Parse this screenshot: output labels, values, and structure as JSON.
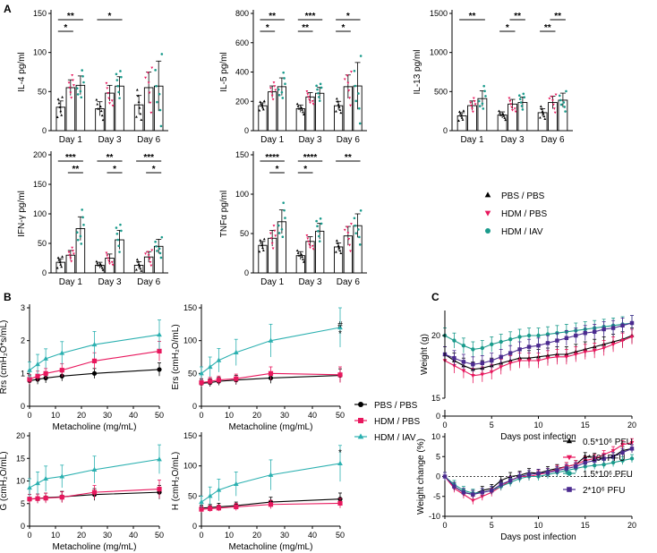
{
  "panel_labels": [
    "A",
    "B",
    "C"
  ],
  "legends": {
    "A": [
      {
        "label": "PBS / PBS",
        "color": "#000000",
        "marker": "triangle"
      },
      {
        "label": "HDM / PBS",
        "color": "#e8175d",
        "marker": "triangle-down"
      },
      {
        "label": "HDM / IAV",
        "color": "#1a9b8c",
        "marker": "circle"
      }
    ],
    "B": [
      {
        "label": "PBS / PBS",
        "color": "#000000",
        "marker": "circle"
      },
      {
        "label": "HDM / PBS",
        "color": "#e8175d",
        "marker": "square"
      },
      {
        "label": "HDM / IAV",
        "color": "#2bb0b0",
        "marker": "triangle"
      }
    ],
    "C": [
      {
        "label": "0.5*10⁶ PFU",
        "color": "#000000",
        "marker": "triangle"
      },
      {
        "label": "1*10⁶ PFU",
        "color": "#e8175d",
        "marker": "triangle-down"
      },
      {
        "label": "1.5*10⁶ PFU",
        "color": "#1a9b8c",
        "marker": "circle"
      },
      {
        "label": "2*10⁶ PFU",
        "color": "#4b2a8f",
        "marker": "square"
      }
    ]
  },
  "chart_data": [
    {
      "id": "A1",
      "type": "bar",
      "ylabel": "IL-4 pg/ml",
      "ylim": [
        0,
        150
      ],
      "yticks": [
        0,
        50,
        100,
        150
      ],
      "categories": [
        "Day 1",
        "Day 3",
        "Day 6"
      ],
      "series": [
        {
          "name": "PBS / PBS",
          "values": [
            30,
            28,
            33
          ]
        },
        {
          "name": "HDM / PBS",
          "values": [
            55,
            48,
            55
          ]
        },
        {
          "name": "HDM / IAV",
          "values": [
            58,
            57,
            57
          ]
        }
      ],
      "errors": [
        [
          8,
          9,
          12
        ],
        [
          10,
          10,
          20
        ],
        [
          12,
          12,
          32
        ]
      ],
      "sig": [
        {
          "g": 0,
          "a": 0,
          "b": 2,
          "t": "**"
        },
        {
          "g": 0,
          "a": 0,
          "b": 1,
          "t": "*"
        },
        {
          "g": 1,
          "a": 0,
          "b": 2,
          "t": "*"
        }
      ]
    },
    {
      "id": "A2",
      "type": "bar",
      "ylabel": "IL-5 pg/ml",
      "ylim": [
        0,
        800
      ],
      "yticks": [
        0,
        200,
        400,
        600,
        800
      ],
      "categories": [
        "Day 1",
        "Day 3",
        "Day 6"
      ],
      "series": [
        {
          "name": "PBS / PBS",
          "values": [
            170,
            150,
            170
          ]
        },
        {
          "name": "HDM / PBS",
          "values": [
            265,
            230,
            300
          ]
        },
        {
          "name": "HDM / IAV",
          "values": [
            300,
            255,
            305
          ]
        }
      ],
      "errors": [
        [
          20,
          25,
          30
        ],
        [
          40,
          30,
          80
        ],
        [
          60,
          40,
          160
        ]
      ],
      "sig": [
        {
          "g": 0,
          "a": 0,
          "b": 2,
          "t": "**"
        },
        {
          "g": 0,
          "a": 0,
          "b": 1,
          "t": "*"
        },
        {
          "g": 1,
          "a": 0,
          "b": 2,
          "t": "***"
        },
        {
          "g": 1,
          "a": 0,
          "b": 1,
          "t": "**"
        },
        {
          "g": 2,
          "a": 0,
          "b": 2,
          "t": "*"
        },
        {
          "g": 2,
          "a": 0,
          "b": 1,
          "t": "*"
        }
      ]
    },
    {
      "id": "A3",
      "type": "bar",
      "ylabel": "IL-13 pg/ml",
      "ylim": [
        0,
        1500
      ],
      "yticks": [
        0,
        500,
        1000,
        1500
      ],
      "categories": [
        "Day 1",
        "Day 3",
        "Day 6"
      ],
      "series": [
        {
          "name": "PBS / PBS",
          "values": [
            190,
            200,
            230
          ]
        },
        {
          "name": "HDM / PBS",
          "values": [
            320,
            340,
            360
          ]
        },
        {
          "name": "HDM / IAV",
          "values": [
            410,
            360,
            390
          ]
        }
      ],
      "errors": [
        [
          40,
          40,
          50
        ],
        [
          60,
          60,
          80
        ],
        [
          100,
          70,
          90
        ]
      ],
      "sig": [
        {
          "g": 0,
          "a": 0,
          "b": 2,
          "t": "**"
        },
        {
          "g": 1,
          "a": 1,
          "b": 2,
          "t": "**"
        },
        {
          "g": 1,
          "a": 0,
          "b": 1,
          "t": "*"
        },
        {
          "g": 2,
          "a": 1,
          "b": 2,
          "t": "**"
        },
        {
          "g": 2,
          "a": 0,
          "b": 1,
          "t": "**"
        }
      ]
    },
    {
      "id": "A4",
      "type": "bar",
      "ylabel": "IFN-γ pg/ml",
      "ylim": [
        0,
        200
      ],
      "yticks": [
        0,
        50,
        100,
        150,
        200
      ],
      "categories": [
        "Day 1",
        "Day 3",
        "Day 6"
      ],
      "series": [
        {
          "name": "PBS / PBS",
          "values": [
            18,
            13,
            13
          ]
        },
        {
          "name": "HDM / PBS",
          "values": [
            30,
            25,
            27
          ]
        },
        {
          "name": "HDM / IAV",
          "values": [
            75,
            56,
            45
          ]
        }
      ],
      "errors": [
        [
          6,
          5,
          6
        ],
        [
          8,
          7,
          9
        ],
        [
          20,
          16,
          12
        ]
      ],
      "sig": [
        {
          "g": 0,
          "a": 0,
          "b": 2,
          "t": "***"
        },
        {
          "g": 0,
          "a": 1,
          "b": 2,
          "t": "**"
        },
        {
          "g": 1,
          "a": 0,
          "b": 2,
          "t": "**"
        },
        {
          "g": 1,
          "a": 1,
          "b": 2,
          "t": "*"
        },
        {
          "g": 2,
          "a": 0,
          "b": 2,
          "t": "***"
        },
        {
          "g": 2,
          "a": 1,
          "b": 2,
          "t": "*"
        }
      ]
    },
    {
      "id": "A5",
      "type": "bar",
      "ylabel": "TNFα pg/ml",
      "ylim": [
        0,
        150
      ],
      "yticks": [
        0,
        50,
        100,
        150
      ],
      "categories": [
        "Day 1",
        "Day 3",
        "Day 6"
      ],
      "series": [
        {
          "name": "PBS / PBS",
          "values": [
            35,
            22,
            33
          ]
        },
        {
          "name": "HDM / PBS",
          "values": [
            44,
            40,
            47
          ]
        },
        {
          "name": "HDM / IAV",
          "values": [
            65,
            53,
            60
          ]
        }
      ],
      "errors": [
        [
          5,
          5,
          5
        ],
        [
          10,
          6,
          12
        ],
        [
          15,
          10,
          15
        ]
      ],
      "sig": [
        {
          "g": 0,
          "a": 0,
          "b": 2,
          "t": "****"
        },
        {
          "g": 0,
          "a": 1,
          "b": 2,
          "t": "*"
        },
        {
          "g": 1,
          "a": 0,
          "b": 2,
          "t": "****"
        },
        {
          "g": 1,
          "a": 0,
          "b": 1,
          "t": "*"
        },
        {
          "g": 2,
          "a": 0,
          "b": 2,
          "t": "**"
        }
      ]
    },
    {
      "id": "B1",
      "type": "line",
      "ylabel": "Rrs (cmH₂O*s/mL)",
      "xlabel": "Metacholine (mg/mL)",
      "xlim": [
        0,
        50
      ],
      "ylim": [
        0,
        3
      ],
      "yticks": [
        0,
        1,
        2,
        3
      ],
      "xticks": [
        0,
        10,
        20,
        30,
        40,
        50
      ],
      "x": [
        0,
        3.125,
        6.25,
        12.5,
        25,
        50
      ],
      "series": [
        {
          "name": "PBS / PBS",
          "values": [
            0.78,
            0.82,
            0.86,
            0.92,
            1.0,
            1.12
          ],
          "err": [
            0.15,
            0.15,
            0.15,
            0.15,
            0.15,
            0.2
          ]
        },
        {
          "name": "HDM / PBS",
          "values": [
            0.82,
            0.92,
            1.0,
            1.1,
            1.38,
            1.68
          ],
          "err": [
            0.15,
            0.15,
            0.15,
            0.2,
            0.25,
            0.3
          ]
        },
        {
          "name": "HDM / IAV",
          "values": [
            1.1,
            1.28,
            1.45,
            1.62,
            1.88,
            2.18
          ],
          "err": [
            0.25,
            0.3,
            0.3,
            0.35,
            0.4,
            0.45
          ]
        }
      ],
      "annotation": ""
    },
    {
      "id": "B2",
      "type": "line",
      "ylabel": "Ers (cmH₂O/mL)",
      "xlabel": "Metacholine (mg/mL)",
      "xlim": [
        0,
        50
      ],
      "ylim": [
        0,
        150
      ],
      "yticks": [
        0,
        50,
        100,
        150
      ],
      "xticks": [
        0,
        10,
        20,
        30,
        40,
        50
      ],
      "x": [
        0,
        3.125,
        6.25,
        12.5,
        25,
        50
      ],
      "series": [
        {
          "name": "PBS / PBS",
          "values": [
            35,
            36,
            38,
            40,
            43,
            47
          ],
          "err": [
            6,
            6,
            6,
            7,
            8,
            10
          ]
        },
        {
          "name": "HDM / PBS",
          "values": [
            36,
            38,
            40,
            42,
            50,
            48
          ],
          "err": [
            6,
            6,
            6,
            7,
            10,
            12
          ]
        },
        {
          "name": "HDM / IAV",
          "values": [
            50,
            60,
            70,
            82,
            100,
            120
          ],
          "err": [
            10,
            15,
            18,
            20,
            25,
            30
          ]
        }
      ],
      "annotation": "#\n*"
    },
    {
      "id": "B3",
      "type": "line",
      "ylabel": "G (cmH₂O/mL)",
      "xlabel": "Metacholine (mg/mL)",
      "xlim": [
        0,
        50
      ],
      "ylim": [
        0,
        20
      ],
      "yticks": [
        0,
        5,
        10,
        15,
        20
      ],
      "xticks": [
        0,
        10,
        20,
        30,
        40,
        50
      ],
      "x": [
        0,
        3.125,
        6.25,
        12.5,
        25,
        50
      ],
      "series": [
        {
          "name": "PBS / PBS",
          "values": [
            6.0,
            6.1,
            6.3,
            6.5,
            7.0,
            7.5
          ],
          "err": [
            1.0,
            1.0,
            1.0,
            1.2,
            1.3,
            1.5
          ]
        },
        {
          "name": "HDM / PBS",
          "values": [
            6.0,
            6.1,
            6.2,
            6.4,
            7.5,
            8.2
          ],
          "err": [
            1.0,
            1.0,
            1.1,
            1.2,
            1.5,
            2.0
          ]
        },
        {
          "name": "HDM / IAV",
          "values": [
            8.5,
            9.5,
            10.5,
            11.0,
            12.5,
            14.8
          ],
          "err": [
            2.0,
            2.5,
            2.8,
            2.5,
            3.0,
            3.2
          ]
        }
      ],
      "annotation": ""
    },
    {
      "id": "B4",
      "type": "line",
      "ylabel": "H (cmH₂O/mL)",
      "xlabel": "Metacholine (mg/mL)",
      "xlim": [
        0,
        50
      ],
      "ylim": [
        0,
        150
      ],
      "yticks": [
        0,
        50,
        100,
        150
      ],
      "xticks": [
        0,
        10,
        20,
        30,
        40,
        50
      ],
      "x": [
        0,
        3.125,
        6.25,
        12.5,
        25,
        50
      ],
      "series": [
        {
          "name": "PBS / PBS",
          "values": [
            30,
            31,
            32,
            34,
            40,
            45
          ],
          "err": [
            5,
            5,
            6,
            6,
            8,
            10
          ]
        },
        {
          "name": "HDM / PBS",
          "values": [
            28,
            29,
            30,
            32,
            36,
            38
          ],
          "err": [
            5,
            5,
            5,
            6,
            7,
            8
          ]
        },
        {
          "name": "HDM / IAV",
          "values": [
            40,
            50,
            60,
            70,
            85,
            104
          ],
          "err": [
            10,
            15,
            18,
            20,
            25,
            30
          ]
        }
      ],
      "annotation": "*"
    },
    {
      "id": "C1",
      "type": "line",
      "ylabel": "Weight (g)",
      "xlabel": "Days post infection",
      "xlim": [
        0,
        20
      ],
      "ylim": [
        15,
        22
      ],
      "yticks": [
        0,
        15,
        20
      ],
      "xticks": [
        0,
        5,
        10,
        15,
        20
      ],
      "axis_break": true,
      "x": [
        0,
        1,
        2,
        3,
        4,
        5,
        6,
        7,
        8,
        9,
        10,
        11,
        12,
        13,
        14,
        15,
        16,
        17,
        18,
        19,
        20
      ],
      "series": [
        {
          "name": "0.5*10⁶ PFU",
          "values": [
            18.5,
            18.0,
            17.6,
            17.3,
            17.4,
            17.6,
            17.8,
            18.0,
            18.2,
            18.2,
            18.3,
            18.4,
            18.5,
            18.5,
            18.7,
            18.9,
            19.1,
            19.3,
            19.5,
            19.7,
            20.0
          ]
        },
        {
          "name": "1*10⁶ PFU",
          "values": [
            18.0,
            17.6,
            17.2,
            16.8,
            16.9,
            17.1,
            17.5,
            17.8,
            18.0,
            18.0,
            18.0,
            18.2,
            18.3,
            18.3,
            18.5,
            18.7,
            18.8,
            19.0,
            19.3,
            19.6,
            19.9
          ]
        },
        {
          "name": "1.5*10⁶ PFU",
          "values": [
            20.0,
            19.6,
            19.2,
            18.9,
            19.0,
            19.3,
            19.5,
            19.7,
            19.9,
            20.0,
            20.0,
            20.1,
            20.2,
            20.3,
            20.4,
            20.5,
            20.6,
            20.7,
            20.8,
            20.9,
            21.0
          ]
        },
        {
          "name": "2*10⁶ PFU",
          "values": [
            18.5,
            18.2,
            17.9,
            17.7,
            17.8,
            18.0,
            18.3,
            18.6,
            18.9,
            19.1,
            19.2,
            19.4,
            19.6,
            19.8,
            20.0,
            20.2,
            20.3,
            20.5,
            20.6,
            20.8,
            21.0
          ]
        }
      ]
    },
    {
      "id": "C2",
      "type": "line",
      "ylabel": "Weight change (%)",
      "xlabel": "Days post infection",
      "xlim": [
        0,
        20
      ],
      "ylim": [
        -10,
        10
      ],
      "yticks": [
        -10,
        -5,
        0,
        5,
        10
      ],
      "xticks": [
        0,
        5,
        10,
        15,
        20
      ],
      "x": [
        0,
        1,
        2,
        3,
        4,
        5,
        6,
        7,
        8,
        9,
        10,
        11,
        12,
        13,
        14,
        15,
        16,
        17,
        18,
        19,
        20
      ],
      "series": [
        {
          "name": "0.5*10⁶ PFU",
          "values": [
            0,
            -2.5,
            -4.0,
            -4.5,
            -3.5,
            -3.0,
            -1.0,
            0,
            0.3,
            1.0,
            0.8,
            1.5,
            2.0,
            2.5,
            3.0,
            5.0,
            4.8,
            4.5,
            5.0,
            6.5,
            7.0
          ]
        },
        {
          "name": "1*10⁶ PFU",
          "values": [
            0,
            -3.0,
            -4.5,
            -6.0,
            -5.0,
            -4.0,
            -2.5,
            -1.0,
            0,
            0,
            0.5,
            1.0,
            1.8,
            2.5,
            3.0,
            4.0,
            4.5,
            5.5,
            6.5,
            8.0,
            8.5
          ]
        },
        {
          "name": "1.5*10⁶ PFU",
          "values": [
            0,
            -2.0,
            -3.5,
            -4.2,
            -4.0,
            -3.5,
            -2.5,
            -1.5,
            -0.5,
            0,
            0,
            0.5,
            1.0,
            1.5,
            2.0,
            2.5,
            2.8,
            3.0,
            3.5,
            4.0,
            4.5
          ]
        },
        {
          "name": "2*10⁶ PFU",
          "values": [
            0,
            -2.5,
            -4.0,
            -4.5,
            -4.0,
            -3.5,
            -2.0,
            -1.0,
            0,
            0.5,
            0.8,
            1.0,
            1.5,
            2.0,
            2.5,
            3.5,
            4.0,
            4.5,
            5.0,
            6.0,
            7.0
          ]
        }
      ]
    }
  ]
}
